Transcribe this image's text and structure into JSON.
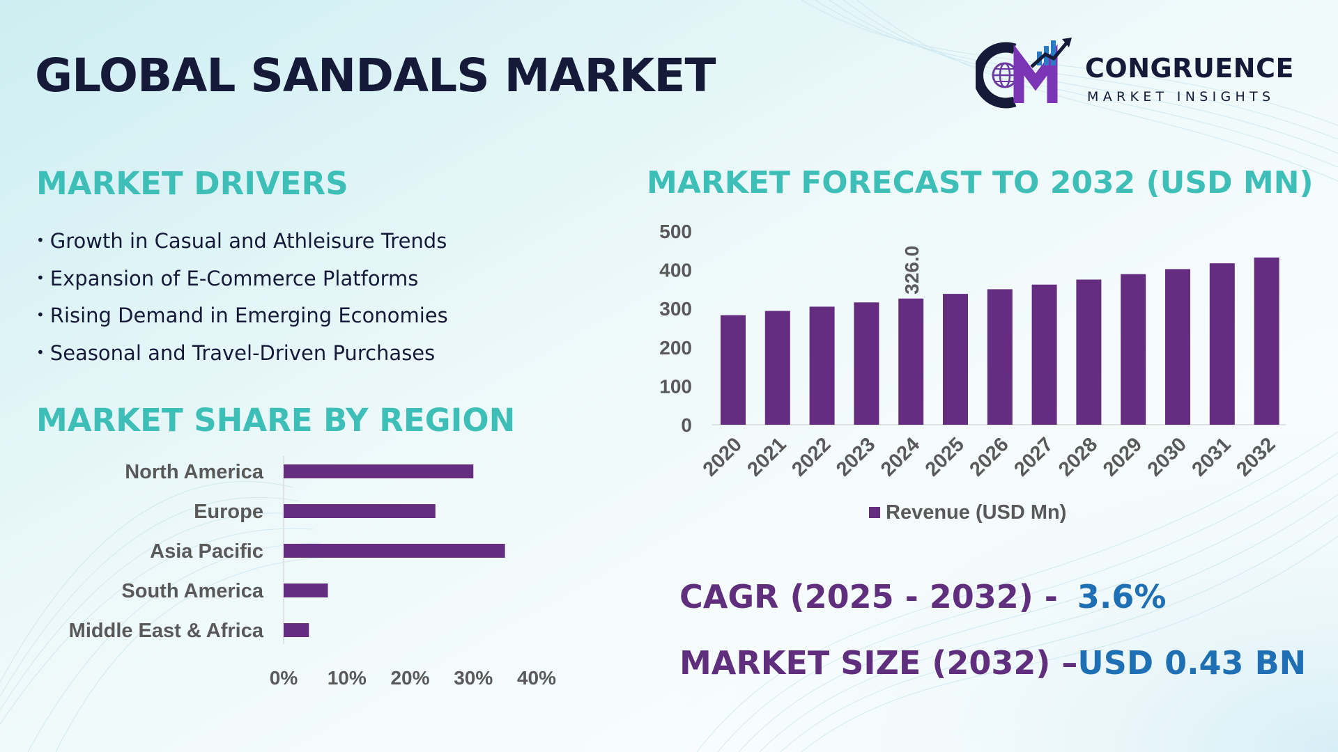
{
  "page": {
    "title": "GLOBAL SANDALS MARKET"
  },
  "logo": {
    "name": "CONGRUENCE",
    "tagline": "MARKET INSIGHTS",
    "icon": "cm-globe-logo-icon"
  },
  "drivers": {
    "title": "MARKET DRIVERS",
    "bullet": "•",
    "items": [
      "Growth in Casual and Athleisure Trends",
      "Expansion of E-Commerce Platforms",
      "Rising Demand in Emerging Economies",
      "Seasonal and Travel-Driven Purchases"
    ]
  },
  "region": {
    "title": "MARKET SHARE BY REGION"
  },
  "forecast": {
    "title": "MARKET FORECAST TO 2032 (USD MN)"
  },
  "kpis": {
    "cagr_label": "CAGR (2025 - 2032) -",
    "cagr_value": "3.6%",
    "size_label": "MARKET SIZE (2032) –",
    "size_value": "USD 0.43 BN"
  },
  "colors": {
    "bar": "#652d80",
    "accent_teal": "#3dbfb7",
    "dark_navy": "#141a38",
    "kpi_label": "#5f2f7d",
    "kpi_value": "#1f6fb5",
    "tick_gray": "#595959"
  },
  "chart_data": [
    {
      "type": "bar",
      "orientation": "horizontal",
      "title": "MARKET SHARE BY REGION",
      "categories": [
        "North America",
        "Europe",
        "Asia Pacific",
        "South America",
        "Middle East & Africa"
      ],
      "values": [
        30,
        24,
        35,
        7,
        4
      ],
      "unit": "%",
      "xlim": [
        0,
        40
      ],
      "xticks": [
        "0%",
        "10%",
        "20%",
        "30%",
        "40%"
      ],
      "legend": false
    },
    {
      "type": "bar",
      "orientation": "vertical",
      "title": "MARKET FORECAST TO 2032 (USD MN)",
      "categories": [
        "2020",
        "2021",
        "2022",
        "2023",
        "2024",
        "2025",
        "2026",
        "2027",
        "2028",
        "2029",
        "2030",
        "2031",
        "2032"
      ],
      "series": [
        {
          "name": "Revenue (USD Mn)",
          "values": [
            283,
            294,
            305,
            316,
            326.0,
            338,
            350,
            362,
            375,
            389,
            402,
            417,
            432
          ]
        }
      ],
      "data_labels": [
        {
          "category": "2024",
          "text": "326.0"
        }
      ],
      "ylim": [
        0,
        500
      ],
      "yticks": [
        "0",
        "100",
        "200",
        "300",
        "400",
        "500"
      ],
      "legend": "bottom-center"
    }
  ]
}
